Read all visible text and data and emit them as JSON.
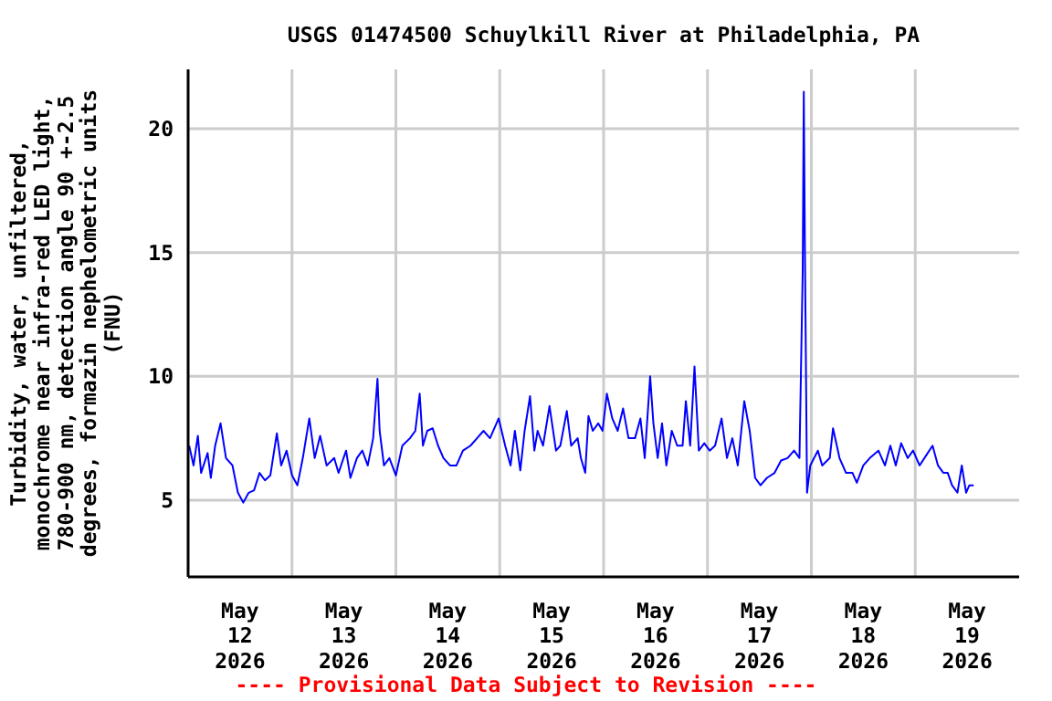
{
  "chart_data": {
    "type": "line",
    "title": "USGS 01474500 Schuylkill River at Philadelphia, PA",
    "ylabel": "Turbidity, water, unfiltered, monochrome near infra-red LED light, 780-900 nm, detection angle 90 +-2.5 degrees, formazin nephelometric units (FNU)",
    "annotations": [
      "---- Provisional Data Subject to Revision ----"
    ],
    "x": [
      "2026-05-12T00:15",
      "2026-05-12T01:15",
      "2026-05-12T02:15",
      "2026-05-12T03:00",
      "2026-05-12T04:30",
      "2026-05-12T05:15",
      "2026-05-12T06:15",
      "2026-05-12T07:30",
      "2026-05-12T08:45",
      "2026-05-12T10:15",
      "2026-05-12T11:30",
      "2026-05-12T12:45",
      "2026-05-12T14:00",
      "2026-05-12T15:15",
      "2026-05-12T16:30",
      "2026-05-12T17:45",
      "2026-05-12T19:00",
      "2026-05-12T20:30",
      "2026-05-12T21:30",
      "2026-05-12T22:45",
      "2026-05-13T00:00",
      "2026-05-13T01:15",
      "2026-05-13T02:30",
      "2026-05-13T04:00",
      "2026-05-13T05:15",
      "2026-05-13T06:30",
      "2026-05-13T08:00",
      "2026-05-13T09:45",
      "2026-05-13T10:45",
      "2026-05-13T12:30",
      "2026-05-13T13:30",
      "2026-05-13T15:00",
      "2026-05-13T16:15",
      "2026-05-13T17:30",
      "2026-05-13T18:45",
      "2026-05-13T19:45",
      "2026-05-13T20:15",
      "2026-05-13T21:15",
      "2026-05-13T22:30",
      "2026-05-14T00:00",
      "2026-05-14T01:30",
      "2026-05-14T03:15",
      "2026-05-14T04:30",
      "2026-05-14T05:30",
      "2026-05-14T06:15",
      "2026-05-14T07:15",
      "2026-05-14T08:30",
      "2026-05-14T09:45",
      "2026-05-14T11:00",
      "2026-05-14T12:30",
      "2026-05-14T14:00",
      "2026-05-14T15:30",
      "2026-05-14T17:15",
      "2026-05-14T18:45",
      "2026-05-14T20:15",
      "2026-05-14T21:45",
      "2026-05-14T23:45",
      "2026-05-15T01:15",
      "2026-05-15T02:30",
      "2026-05-15T03:30",
      "2026-05-15T04:45",
      "2026-05-15T05:45",
      "2026-05-15T07:00",
      "2026-05-15T08:00",
      "2026-05-15T08:45",
      "2026-05-15T10:00",
      "2026-05-15T11:30",
      "2026-05-15T13:00",
      "2026-05-15T14:00",
      "2026-05-15T15:30",
      "2026-05-15T16:30",
      "2026-05-15T18:00",
      "2026-05-15T18:45",
      "2026-05-15T19:45",
      "2026-05-15T20:30",
      "2026-05-15T21:30",
      "2026-05-15T22:45",
      "2026-05-15T23:45",
      "2026-05-16T00:45",
      "2026-05-16T02:00",
      "2026-05-16T03:15",
      "2026-05-16T04:30",
      "2026-05-16T05:45",
      "2026-05-16T07:15",
      "2026-05-16T08:30",
      "2026-05-16T09:30",
      "2026-05-16T10:45",
      "2026-05-16T11:30",
      "2026-05-16T12:30",
      "2026-05-16T13:30",
      "2026-05-16T14:30",
      "2026-05-16T15:45",
      "2026-05-16T17:00",
      "2026-05-16T18:15",
      "2026-05-16T19:00",
      "2026-05-16T20:00",
      "2026-05-16T21:00",
      "2026-05-16T22:00",
      "2026-05-16T23:15",
      "2026-05-17T00:30",
      "2026-05-17T01:45",
      "2026-05-17T03:15",
      "2026-05-17T04:30",
      "2026-05-17T05:45",
      "2026-05-17T07:00",
      "2026-05-17T08:30",
      "2026-05-17T09:45",
      "2026-05-17T11:00",
      "2026-05-17T12:15",
      "2026-05-17T13:45",
      "2026-05-17T15:30",
      "2026-05-17T17:00",
      "2026-05-17T18:30",
      "2026-05-17T20:00",
      "2026-05-17T21:15",
      "2026-05-17T22:00",
      "2026-05-17T22:15",
      "2026-05-17T22:30",
      "2026-05-17T23:00",
      "2026-05-17T23:45",
      "2026-05-18T01:30",
      "2026-05-18T02:30",
      "2026-05-18T04:15",
      "2026-05-18T05:00",
      "2026-05-18T06:30",
      "2026-05-18T08:00",
      "2026-05-18T09:30",
      "2026-05-18T10:30",
      "2026-05-18T12:00",
      "2026-05-18T13:30",
      "2026-05-18T15:30",
      "2026-05-18T17:00",
      "2026-05-18T18:15",
      "2026-05-18T19:30",
      "2026-05-18T20:45",
      "2026-05-18T22:15",
      "2026-05-18T23:30",
      "2026-05-19T01:00",
      "2026-05-19T02:30",
      "2026-05-19T04:00",
      "2026-05-19T05:15",
      "2026-05-19T06:30",
      "2026-05-19T07:30",
      "2026-05-19T08:30",
      "2026-05-19T09:45",
      "2026-05-19T10:45",
      "2026-05-19T11:45",
      "2026-05-19T12:30",
      "2026-05-19T13:30"
    ],
    "series": [
      {
        "color": "#0000ff",
        "values": [
          7.2,
          6.4,
          7.6,
          6.1,
          6.9,
          5.9,
          7.2,
          8.1,
          6.7,
          6.4,
          5.3,
          4.9,
          5.3,
          5.4,
          6.1,
          5.8,
          6.0,
          7.7,
          6.4,
          7.0,
          6.0,
          5.6,
          6.7,
          8.3,
          6.7,
          7.6,
          6.4,
          6.7,
          6.1,
          7.0,
          5.9,
          6.7,
          7.0,
          6.4,
          7.5,
          9.9,
          7.8,
          6.4,
          6.7,
          6.0,
          7.2,
          7.5,
          7.8,
          9.3,
          7.2,
          7.8,
          7.9,
          7.2,
          6.7,
          6.4,
          6.4,
          7.0,
          7.2,
          7.5,
          7.8,
          7.5,
          8.3,
          7.2,
          6.4,
          7.8,
          6.2,
          7.8,
          9.2,
          7.0,
          7.8,
          7.2,
          8.8,
          7.0,
          7.2,
          8.6,
          7.2,
          7.5,
          6.7,
          6.1,
          8.4,
          7.8,
          8.1,
          7.8,
          9.3,
          8.3,
          7.8,
          8.7,
          7.5,
          7.5,
          8.3,
          6.7,
          10.0,
          8.1,
          6.7,
          8.1,
          6.4,
          7.8,
          7.2,
          7.2,
          9.0,
          7.2,
          10.4,
          7.0,
          7.3,
          7.0,
          7.2,
          8.3,
          6.7,
          7.5,
          6.4,
          9.0,
          7.8,
          5.9,
          5.6,
          5.9,
          6.1,
          6.6,
          6.7,
          7.0,
          6.7,
          14.3,
          21.5,
          15.3,
          5.3,
          6.4,
          7.0,
          6.4,
          6.7,
          7.9,
          6.7,
          6.1,
          6.1,
          5.7,
          6.4,
          6.7,
          7.0,
          6.4,
          7.2,
          6.4,
          7.3,
          6.7,
          7.0,
          6.4,
          6.8,
          7.2,
          6.4,
          6.1,
          6.1,
          5.6,
          5.3,
          6.4,
          5.3,
          5.6,
          5.6
        ]
      }
    ],
    "xlim": [
      "2026-05-12",
      "2026-05-20"
    ],
    "xticks": [
      {
        "value": "2026-05-12T12:00",
        "label": "May\n12\n2026"
      },
      {
        "value": "2026-05-13",
        "label": null
      },
      {
        "value": "2026-05-13T12:00",
        "label": "May\n13\n2026"
      },
      {
        "value": "2026-05-14",
        "label": null
      },
      {
        "value": "2026-05-14T12:00",
        "label": "May\n14\n2026"
      },
      {
        "value": "2026-05-15",
        "label": null
      },
      {
        "value": "2026-05-15T12:00",
        "label": "May\n15\n2026"
      },
      {
        "value": "2026-05-16",
        "label": null
      },
      {
        "value": "2026-05-16T12:00",
        "label": "May\n16\n2026"
      },
      {
        "value": "2026-05-17",
        "label": null
      },
      {
        "value": "2026-05-17T12:00",
        "label": "May\n17\n2026"
      },
      {
        "value": "2026-05-18",
        "label": null
      },
      {
        "value": "2026-05-18T12:00",
        "label": "May\n18\n2026"
      },
      {
        "value": "2026-05-19",
        "label": null
      },
      {
        "value": "2026-05-19T12:00",
        "label": "May\n19\n2026"
      }
    ],
    "ylim": [
      1.9,
      22.4
    ],
    "yticks": [
      5,
      10,
      15,
      20
    ],
    "grid": true
  }
}
